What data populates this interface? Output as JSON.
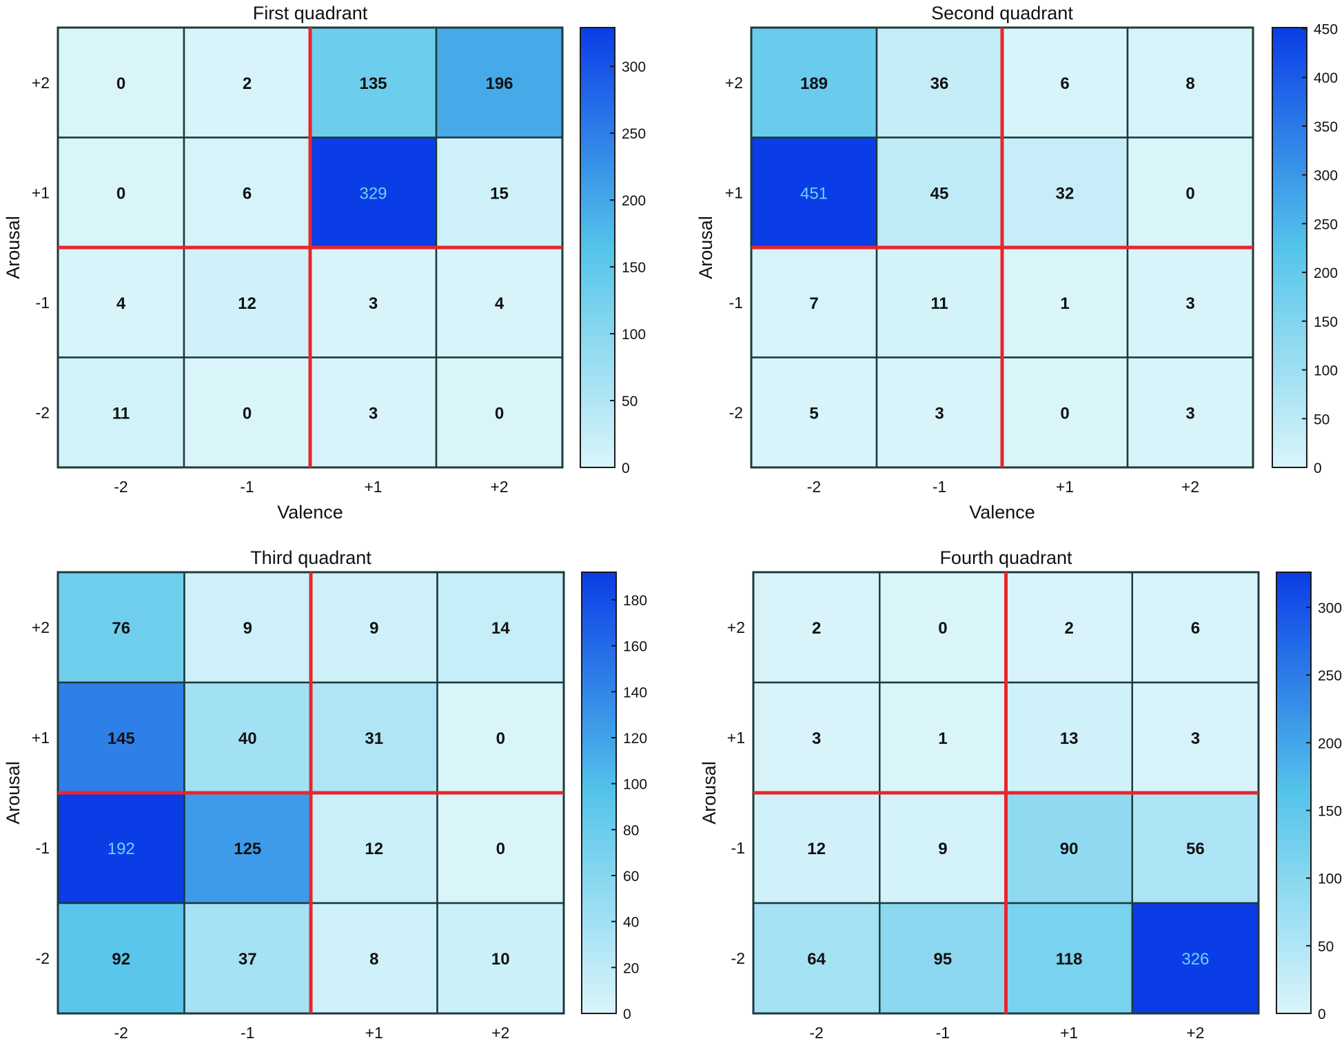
{
  "chart_data": [
    {
      "type": "heatmap",
      "title": "First quadrant",
      "xlabel": "Valence",
      "ylabel": "Arousal",
      "x_categories": [
        "-2",
        "-1",
        "+1",
        "+2"
      ],
      "y_categories": [
        "+2",
        "+1",
        "-1",
        "-2"
      ],
      "values": [
        [
          0,
          2,
          135,
          196
        ],
        [
          0,
          6,
          329,
          15
        ],
        [
          4,
          12,
          3,
          4
        ],
        [
          11,
          0,
          3,
          0
        ]
      ],
      "colorbar": {
        "min": 0,
        "max": 329,
        "ticks": [
          "0",
          "50",
          "100",
          "150",
          "200",
          "250",
          "300"
        ]
      }
    },
    {
      "type": "heatmap",
      "title": "Second quadrant",
      "xlabel": "Valence",
      "ylabel": "Arousal",
      "x_categories": [
        "-2",
        "-1",
        "+1",
        "+2"
      ],
      "y_categories": [
        "+2",
        "+1",
        "-1",
        "-2"
      ],
      "values": [
        [
          189,
          36,
          6,
          8
        ],
        [
          451,
          45,
          32,
          0
        ],
        [
          7,
          11,
          1,
          3
        ],
        [
          5,
          3,
          0,
          3
        ]
      ],
      "colorbar": {
        "min": 0,
        "max": 451,
        "ticks": [
          "0",
          "50",
          "100",
          "150",
          "200",
          "250",
          "300",
          "350",
          "400",
          "450"
        ]
      }
    },
    {
      "type": "heatmap",
      "title": "Third quadrant",
      "xlabel": "",
      "ylabel": "Arousal",
      "x_categories": [
        "-2",
        "-1",
        "+1",
        "+2"
      ],
      "y_categories": [
        "+2",
        "+1",
        "-1",
        "-2"
      ],
      "values": [
        [
          76,
          9,
          9,
          14
        ],
        [
          145,
          40,
          31,
          0
        ],
        [
          192,
          125,
          12,
          0
        ],
        [
          92,
          37,
          8,
          10
        ]
      ],
      "colorbar": {
        "min": 0,
        "max": 192,
        "ticks": [
          "0",
          "20",
          "40",
          "60",
          "80",
          "100",
          "120",
          "140",
          "160",
          "180"
        ]
      }
    },
    {
      "type": "heatmap",
      "title": "Fourth quadrant",
      "xlabel": "",
      "ylabel": "Arousal",
      "x_categories": [
        "-2",
        "-1",
        "+1",
        "+2"
      ],
      "y_categories": [
        "+2",
        "+1",
        "-1",
        "-2"
      ],
      "values": [
        [
          2,
          0,
          2,
          6
        ],
        [
          3,
          1,
          13,
          3
        ],
        [
          12,
          9,
          90,
          56
        ],
        [
          64,
          95,
          118,
          326
        ]
      ],
      "colorbar": {
        "min": 0,
        "max": 326,
        "ticks": [
          "0",
          "50",
          "100",
          "150",
          "200",
          "250",
          "300"
        ]
      }
    }
  ],
  "colors": {
    "low": "#daf5fa",
    "mid": "#54c4ea",
    "high": "#0a3de6",
    "divider": "#e8262c",
    "grid": "#1d3a3c",
    "light_text": "#6fd2f5",
    "dark_text": "#111111"
  }
}
